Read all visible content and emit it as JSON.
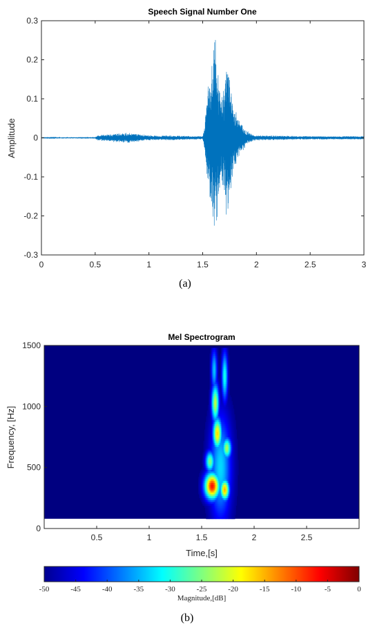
{
  "chart_data": [
    {
      "type": "line",
      "title": "Speech Signal Number One",
      "xlabel": "",
      "ylabel": "Amplitude",
      "xlim": [
        0,
        3
      ],
      "ylim": [
        -0.3,
        0.3
      ],
      "xticks": [
        "0",
        "0.5",
        "1",
        "1.5",
        "2",
        "2.5",
        "3"
      ],
      "yticks": [
        "0.3",
        "0.2",
        "0.1",
        "0",
        "-0.1",
        "-0.2",
        "-0.3"
      ],
      "grid": false,
      "color": "#0072BD",
      "series": [
        {
          "x": [
            0.0,
            0.5,
            0.52,
            0.6,
            0.7,
            0.8,
            0.9,
            1.0,
            1.1,
            1.2,
            1.3,
            1.4,
            1.5,
            1.52,
            1.55,
            1.58,
            1.6,
            1.62,
            1.65,
            1.68,
            1.7,
            1.72,
            1.75,
            1.78,
            1.8,
            1.85,
            1.9,
            1.95,
            2.0,
            2.5,
            3.0
          ],
          "envelope": [
            0.0005,
            0.002,
            0.006,
            0.008,
            0.01,
            0.012,
            0.009,
            0.006,
            0.005,
            0.006,
            0.005,
            0.004,
            0.004,
            0.03,
            0.13,
            0.16,
            0.21,
            0.23,
            0.14,
            0.12,
            0.11,
            0.2,
            0.16,
            0.1,
            0.07,
            0.04,
            0.02,
            0.01,
            0.006,
            0.004,
            0.004
          ]
        }
      ]
    },
    {
      "type": "heatmap",
      "title": "Mel Spectrogram",
      "xlabel": "Time,[s]",
      "ylabel": "Frequency, [Hz]",
      "xlim": [
        0,
        3
      ],
      "ylim": [
        0,
        1500
      ],
      "xticks": [
        "0.5",
        "1",
        "1.5",
        "2",
        "2.5"
      ],
      "yticks": [
        "1500",
        "1000",
        "500",
        "0"
      ],
      "data_ymin": 80,
      "background_db": -50,
      "blobs": [
        {
          "t": 1.6,
          "f": 350,
          "st": 0.05,
          "sf": 75,
          "db": -7
        },
        {
          "t": 1.72,
          "f": 320,
          "st": 0.03,
          "sf": 60,
          "db": -15
        },
        {
          "t": 1.65,
          "f": 780,
          "st": 0.03,
          "sf": 90,
          "db": -17
        },
        {
          "t": 1.63,
          "f": 1030,
          "st": 0.025,
          "sf": 110,
          "db": -22
        },
        {
          "t": 1.74,
          "f": 660,
          "st": 0.03,
          "sf": 60,
          "db": -23
        },
        {
          "t": 1.72,
          "f": 1250,
          "st": 0.02,
          "sf": 140,
          "db": -30
        },
        {
          "t": 1.58,
          "f": 550,
          "st": 0.03,
          "sf": 60,
          "db": -25
        },
        {
          "t": 1.68,
          "f": 500,
          "st": 0.07,
          "sf": 300,
          "db": -33
        },
        {
          "t": 1.62,
          "f": 1300,
          "st": 0.02,
          "sf": 120,
          "db": -34
        }
      ]
    },
    {
      "type": "colorbar",
      "label": "Magnitude,[dB]",
      "range": [
        -50,
        0
      ],
      "ticks": [
        "-50",
        "-45",
        "-40",
        "-35",
        "-30",
        "-25",
        "-20",
        "-15",
        "-10",
        "-5",
        "0"
      ]
    }
  ],
  "captions": {
    "a": "(a)",
    "b": "(b)"
  }
}
